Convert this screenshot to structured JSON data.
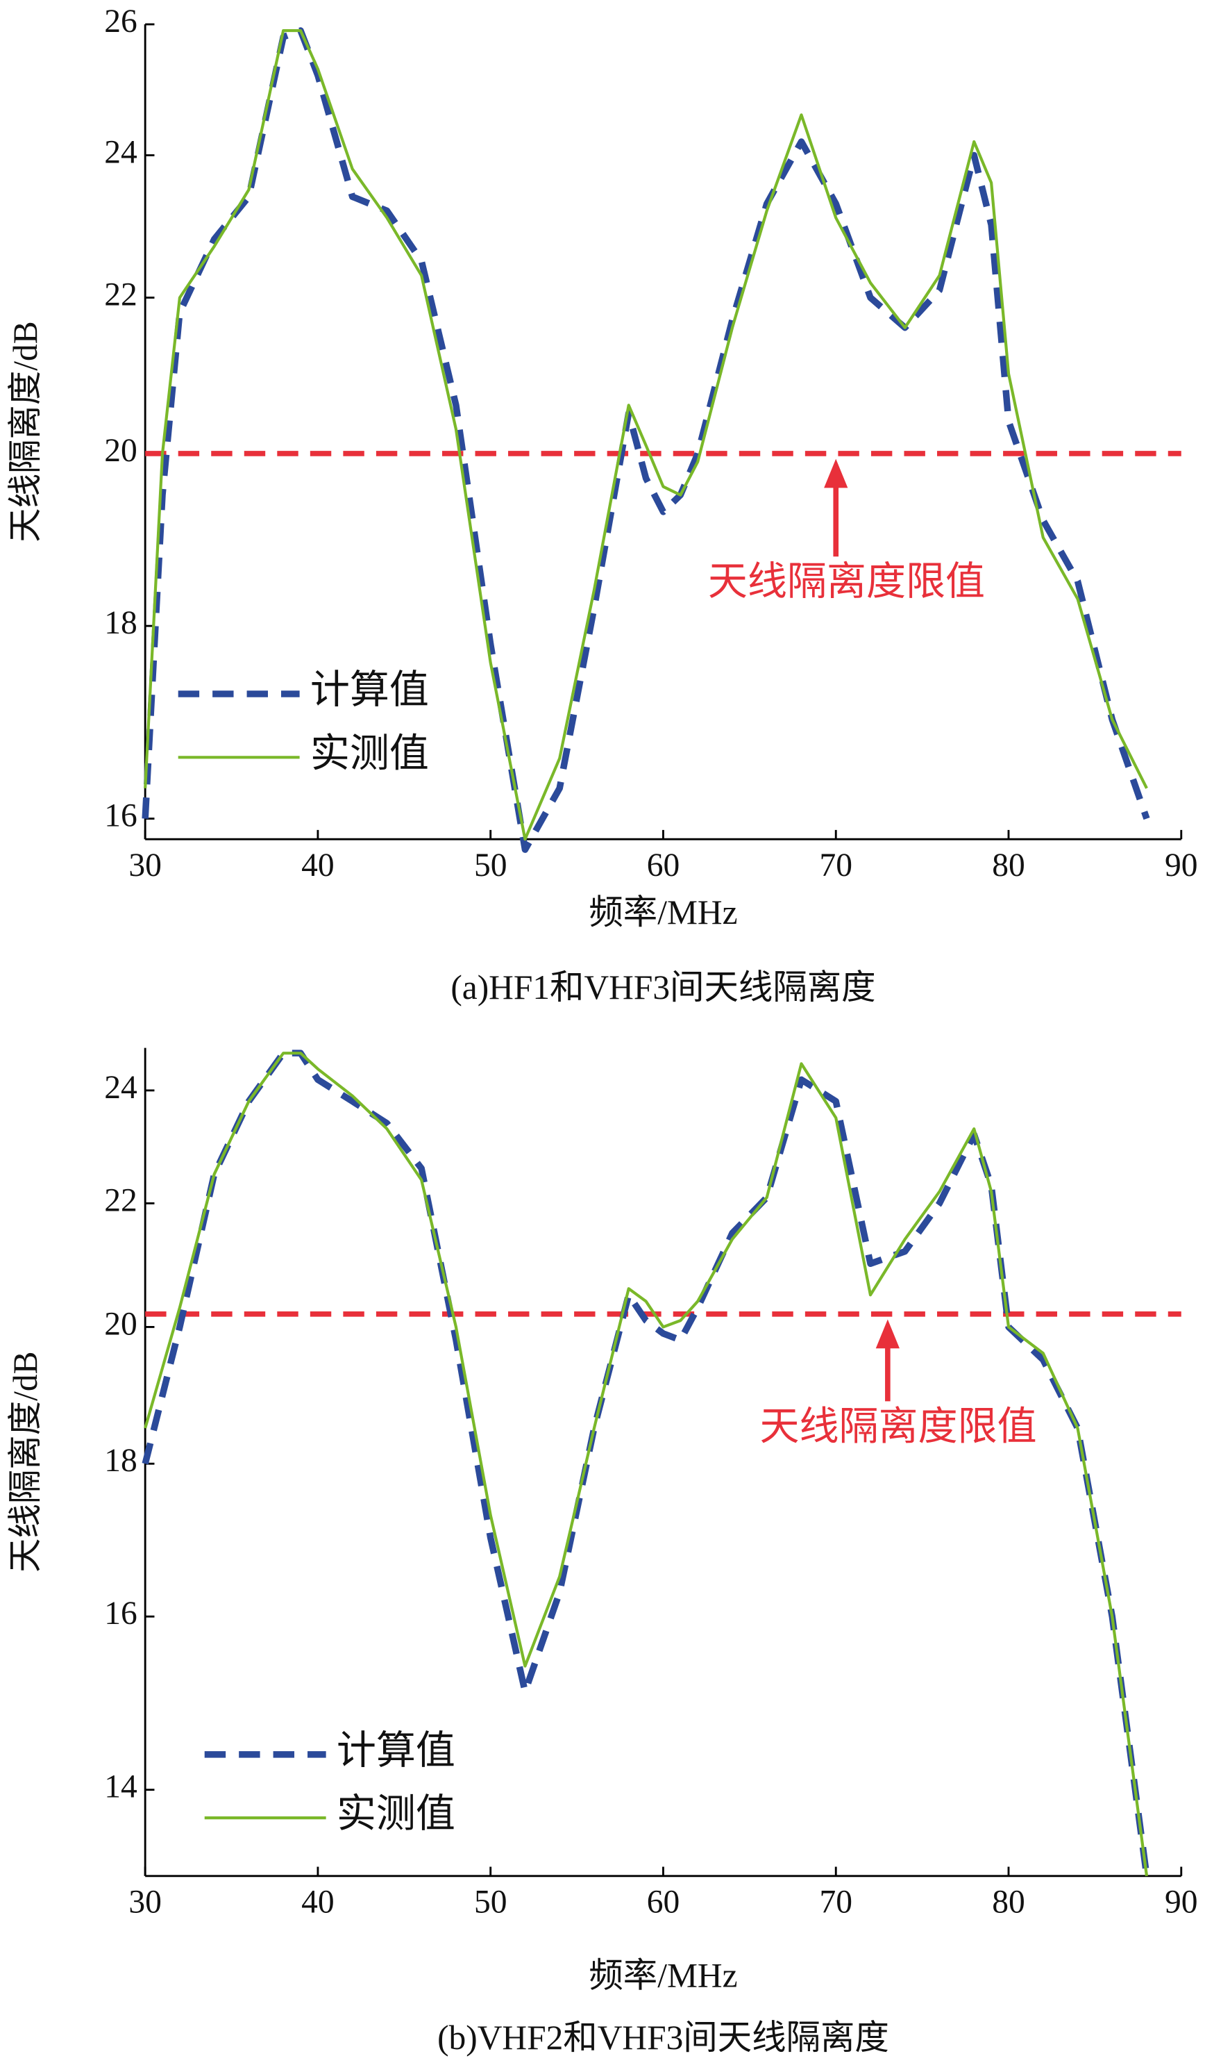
{
  "chart_data": [
    {
      "type": "line",
      "caption": "(a)HF1和VHF3间天线隔离度",
      "x_label": "频率/MHz",
      "y_label": "天线隔离度/dB",
      "log_y": true,
      "xlim": [
        30,
        90
      ],
      "xticks": [
        30,
        40,
        50,
        60,
        70,
        80,
        90
      ],
      "ylim": [
        15.8,
        26
      ],
      "yticks": [
        16,
        18,
        20,
        22,
        24,
        26
      ],
      "x": [
        30,
        31,
        32,
        34,
        36,
        38,
        39,
        40,
        42,
        44,
        46,
        48,
        50,
        52,
        54,
        56,
        58,
        59,
        60,
        61,
        62,
        64,
        66,
        68,
        70,
        72,
        74,
        76,
        78,
        79,
        80,
        82,
        84,
        86,
        88
      ],
      "series": [
        {
          "name": "计算值",
          "color": "#2b4a9a",
          "dashed": true,
          "values": [
            16.0,
            19.5,
            21.8,
            22.8,
            23.4,
            25.8,
            25.9,
            25.2,
            23.4,
            23.2,
            22.5,
            20.6,
            17.8,
            15.7,
            16.3,
            18.2,
            20.5,
            19.7,
            19.3,
            19.5,
            20.0,
            21.7,
            23.3,
            24.2,
            23.3,
            22.0,
            21.6,
            22.1,
            24.0,
            23.0,
            20.4,
            19.2,
            18.5,
            17.0,
            16.0
          ]
        },
        {
          "name": "实测值",
          "color": "#7ab829",
          "dashed": false,
          "values": [
            16.3,
            20.0,
            22.0,
            22.7,
            23.5,
            25.9,
            25.9,
            25.3,
            23.8,
            23.1,
            22.3,
            20.3,
            17.6,
            15.8,
            16.6,
            18.4,
            20.6,
            20.1,
            19.6,
            19.5,
            19.9,
            21.6,
            23.2,
            24.6,
            23.1,
            22.2,
            21.6,
            22.3,
            24.2,
            23.6,
            21.0,
            19.0,
            18.3,
            17.0,
            16.3
          ]
        }
      ],
      "reference_line": {
        "value": 20,
        "color": "#e8303a",
        "label": "天线隔离度限值",
        "arrow_x": 70
      }
    },
    {
      "type": "line",
      "caption": "(b)VHF2和VHF3间天线隔离度",
      "x_label": "频率/MHz",
      "y_label": "天线隔离度/dB",
      "log_y": true,
      "xlim": [
        30,
        90
      ],
      "xticks": [
        30,
        40,
        50,
        60,
        70,
        80,
        90
      ],
      "ylim": [
        13.1,
        24.8
      ],
      "yticks": [
        14,
        16,
        18,
        20,
        22,
        24
      ],
      "x": [
        30,
        32,
        34,
        36,
        38,
        39,
        40,
        42,
        44,
        46,
        48,
        50,
        52,
        54,
        56,
        58,
        59,
        60,
        61,
        62,
        64,
        66,
        68,
        70,
        72,
        74,
        76,
        78,
        79,
        80,
        82,
        84,
        86,
        88
      ],
      "series": [
        {
          "name": "计算值",
          "color": "#2b4a9a",
          "dashed": true,
          "values": [
            18.0,
            20.0,
            22.5,
            23.8,
            24.7,
            24.7,
            24.2,
            23.8,
            23.4,
            22.6,
            19.8,
            17.0,
            15.1,
            16.3,
            18.5,
            20.5,
            20.1,
            19.9,
            19.8,
            20.3,
            21.5,
            22.1,
            24.2,
            23.8,
            21.0,
            21.2,
            22.0,
            23.2,
            22.3,
            20.0,
            19.5,
            18.5,
            16.0,
            13.1
          ]
        },
        {
          "name": "实测值",
          "color": "#7ab829",
          "dashed": false,
          "values": [
            18.5,
            20.3,
            22.5,
            23.8,
            24.7,
            24.7,
            24.4,
            23.9,
            23.3,
            22.4,
            20.0,
            17.3,
            15.4,
            16.5,
            18.5,
            20.6,
            20.4,
            20.0,
            20.1,
            20.4,
            21.4,
            22.1,
            24.5,
            23.5,
            20.5,
            21.4,
            22.2,
            23.3,
            22.2,
            20.0,
            19.6,
            18.5,
            16.0,
            13.1
          ]
        }
      ],
      "reference_line": {
        "value": 20.2,
        "color": "#e8303a",
        "label": "天线隔离度限值",
        "arrow_x": 73
      }
    }
  ]
}
